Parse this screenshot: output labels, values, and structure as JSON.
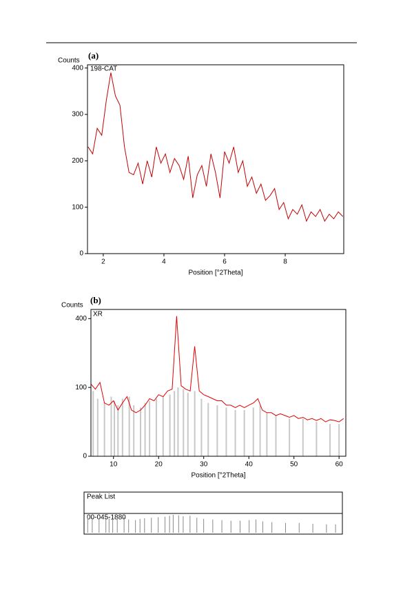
{
  "chart_data": [
    {
      "type": "line",
      "panel_label": "(a)",
      "ylabel": "Counts",
      "xlabel": "Position [°2Theta]",
      "yscale": "linear",
      "xlim": [
        1.48,
        9.93
      ],
      "ylim": [
        0,
        407
      ],
      "xticks": [
        2,
        4,
        6,
        8
      ],
      "yticks": [
        0,
        100,
        200,
        300,
        400
      ],
      "x": [
        1.5,
        1.65,
        1.8,
        1.95,
        2.1,
        2.25,
        2.4,
        2.55,
        2.7,
        2.85,
        3,
        3.15,
        3.3,
        3.45,
        3.6,
        3.75,
        3.9,
        4.05,
        4.2,
        4.35,
        4.5,
        4.65,
        4.8,
        4.95,
        5.1,
        5.25,
        5.4,
        5.55,
        5.7,
        5.85,
        6,
        6.15,
        6.3,
        6.45,
        6.6,
        6.75,
        6.9,
        7.05,
        7.2,
        7.35,
        7.5,
        7.65,
        7.8,
        7.95,
        8.1,
        8.25,
        8.4,
        8.55,
        8.7,
        8.85,
        9,
        9.15,
        9.3,
        9.45,
        9.6,
        9.75,
        9.9
      ],
      "series": [
        {
          "name": "198-CAT",
          "color": "#c00000",
          "values": [
            230,
            215,
            270,
            255,
            330,
            390,
            340,
            320,
            230,
            175,
            170,
            195,
            150,
            200,
            165,
            230,
            195,
            215,
            175,
            205,
            190,
            160,
            210,
            120,
            170,
            190,
            145,
            215,
            175,
            120,
            220,
            195,
            230,
            175,
            200,
            145,
            165,
            130,
            150,
            115,
            125,
            140,
            95,
            110,
            75,
            95,
            85,
            105,
            70,
            90,
            80,
            95,
            70,
            85,
            75,
            90,
            80
          ]
        }
      ]
    },
    {
      "type": "line",
      "panel_label": "(b)",
      "ylabel": "Counts",
      "xlabel": "Position [°2Theta]",
      "yscale": "sqrt",
      "xlim": [
        5,
        61.5
      ],
      "ylim": [
        0,
        455
      ],
      "xticks": [
        10,
        20,
        30,
        40,
        50,
        60
      ],
      "yticks": [
        0,
        100,
        400
      ],
      "x": [
        5,
        6,
        7,
        8,
        9,
        10,
        11,
        12,
        13,
        14,
        15,
        16,
        17,
        18,
        19,
        20,
        21,
        22,
        23,
        24,
        25,
        26,
        27,
        28,
        29,
        30,
        31,
        32,
        33,
        34,
        35,
        36,
        37,
        38,
        39,
        40,
        41,
        42,
        43,
        44,
        45,
        46,
        47,
        48,
        49,
        50,
        51,
        52,
        53,
        54,
        55,
        56,
        57,
        58,
        59,
        60,
        61
      ],
      "series": [
        {
          "name": "XR",
          "color": "#e00000",
          "values": [
            110,
            95,
            115,
            60,
            55,
            65,
            45,
            60,
            75,
            45,
            40,
            45,
            55,
            70,
            65,
            80,
            75,
            90,
            95,
            415,
            105,
            95,
            90,
            255,
            90,
            80,
            75,
            70,
            65,
            65,
            55,
            55,
            50,
            55,
            50,
            55,
            60,
            70,
            45,
            40,
            40,
            35,
            38,
            35,
            32,
            35,
            30,
            32,
            28,
            30,
            27,
            30,
            25,
            28,
            27,
            25,
            30
          ]
        }
      ],
      "reference": {
        "name": "00-045-1880",
        "color": "#c8c8c8",
        "x": [
          5.5,
          6.5,
          8,
          9.5,
          10.2,
          11,
          12,
          13.5,
          14.5,
          16,
          17,
          18,
          19.5,
          21,
          22.5,
          23.5,
          24.3,
          25.5,
          26.5,
          28,
          29.5,
          31,
          33,
          35,
          37,
          39,
          41,
          42.5,
          44,
          46,
          49,
          52,
          55,
          58,
          60
        ],
        "values": [
          90,
          70,
          60,
          75,
          65,
          55,
          70,
          75,
          55,
          50,
          60,
          65,
          70,
          75,
          80,
          90,
          100,
          95,
          85,
          90,
          70,
          60,
          55,
          50,
          45,
          45,
          50,
          55,
          40,
          35,
          30,
          30,
          25,
          22,
          22
        ]
      },
      "peak_list_title": "Peak List"
    }
  ]
}
